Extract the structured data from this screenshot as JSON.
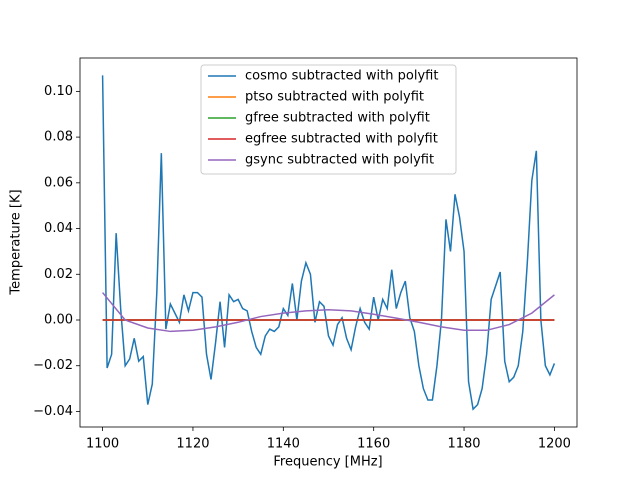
{
  "chart_data": {
    "type": "line",
    "xlabel": "Frequency [MHz]",
    "ylabel": "Temperature [K]",
    "xlim": [
      1095,
      1205
    ],
    "ylim": [
      -0.0468,
      0.1146
    ],
    "xticks": [
      1100,
      1120,
      1140,
      1160,
      1180,
      1200
    ],
    "yticks": [
      {
        "value": -0.04,
        "label": "−0.04"
      },
      {
        "value": -0.02,
        "label": "−0.02"
      },
      {
        "value": 0,
        "label": "0.00"
      },
      {
        "value": 0.02,
        "label": "0.02"
      },
      {
        "value": 0.04,
        "label": "0.04"
      },
      {
        "value": 0.06,
        "label": "0.06"
      },
      {
        "value": 0.08,
        "label": "0.08"
      },
      {
        "value": 0.1,
        "label": "0.10"
      }
    ],
    "legend": "upper center",
    "series": [
      {
        "name": "cosmo subtracted with polyfit",
        "color": "#1f77b4",
        "x": [
          1100,
          1101,
          1102,
          1103,
          1104,
          1105,
          1106,
          1107,
          1108,
          1109,
          1110,
          1111,
          1112,
          1113,
          1114,
          1115,
          1116,
          1117,
          1118,
          1119,
          1120,
          1121,
          1122,
          1123,
          1124,
          1125,
          1126,
          1127,
          1128,
          1129,
          1130,
          1131,
          1132,
          1133,
          1134,
          1135,
          1136,
          1137,
          1138,
          1139,
          1140,
          1141,
          1142,
          1143,
          1144,
          1145,
          1146,
          1147,
          1148,
          1149,
          1150,
          1151,
          1152,
          1153,
          1154,
          1155,
          1156,
          1157,
          1158,
          1159,
          1160,
          1161,
          1162,
          1163,
          1164,
          1165,
          1166,
          1167,
          1168,
          1169,
          1170,
          1171,
          1172,
          1173,
          1174,
          1175,
          1176,
          1177,
          1178,
          1179,
          1180,
          1181,
          1182,
          1183,
          1184,
          1185,
          1186,
          1187,
          1188,
          1189,
          1190,
          1191,
          1192,
          1193,
          1194,
          1195,
          1196,
          1197,
          1198,
          1199,
          1200
        ],
        "values": [
          0.107,
          -0.021,
          -0.015,
          0.038,
          0.005,
          -0.02,
          -0.017,
          -0.008,
          -0.018,
          -0.016,
          -0.037,
          -0.028,
          0.012,
          0.073,
          -0.004,
          0.007,
          0.003,
          -0.001,
          0.011,
          0.004,
          0.012,
          0.012,
          0.01,
          -0.015,
          -0.026,
          -0.01,
          0.008,
          -0.012,
          0.011,
          0.008,
          0.009,
          0.005,
          0.004,
          -0.005,
          -0.012,
          -0.015,
          -0.007,
          -0.004,
          -0.005,
          -0.003,
          0.005,
          0.002,
          0.016,
          0.0,
          0.017,
          0.025,
          0.02,
          -0.001,
          0.008,
          0.006,
          -0.007,
          -0.011,
          -0.002,
          0.001,
          -0.008,
          -0.013,
          -0.003,
          0.005,
          -0.001,
          -0.004,
          0.01,
          0.0,
          0.009,
          0.005,
          0.022,
          0.005,
          0.012,
          0.017,
          0.001,
          -0.005,
          -0.02,
          -0.03,
          -0.035,
          -0.035,
          -0.02,
          0.0,
          0.044,
          0.03,
          0.055,
          0.045,
          0.03,
          -0.027,
          -0.039,
          -0.037,
          -0.03,
          -0.015,
          0.009,
          0.015,
          0.021,
          -0.018,
          -0.027,
          -0.025,
          -0.02,
          -0.005,
          0.025,
          0.061,
          0.074,
          0.0,
          -0.02,
          -0.024,
          -0.019
        ]
      },
      {
        "name": "ptso subtracted with polyfit",
        "color": "#ff7f0e",
        "x": [
          1100,
          1200
        ],
        "values": [
          0,
          0
        ]
      },
      {
        "name": "gfree subtracted with polyfit",
        "color": "#2ca02c",
        "x": [
          1100,
          1200
        ],
        "values": [
          0,
          0
        ]
      },
      {
        "name": "egfree subtracted with polyfit",
        "color": "#d62728",
        "x": [
          1100,
          1200
        ],
        "values": [
          0,
          0
        ]
      },
      {
        "name": "gsync subtracted with polyfit",
        "color": "#9467bd",
        "x": [
          1100,
          1105,
          1110,
          1115,
          1120,
          1125,
          1130,
          1135,
          1140,
          1145,
          1150,
          1155,
          1160,
          1165,
          1170,
          1175,
          1180,
          1185,
          1190,
          1195,
          1200
        ],
        "values": [
          0.012,
          0.0,
          -0.0035,
          -0.005,
          -0.0045,
          -0.003,
          -0.001,
          0.0015,
          0.003,
          0.004,
          0.0045,
          0.004,
          0.0025,
          0.0008,
          -0.001,
          -0.003,
          -0.0045,
          -0.0045,
          -0.002,
          0.003,
          0.011
        ]
      }
    ]
  }
}
